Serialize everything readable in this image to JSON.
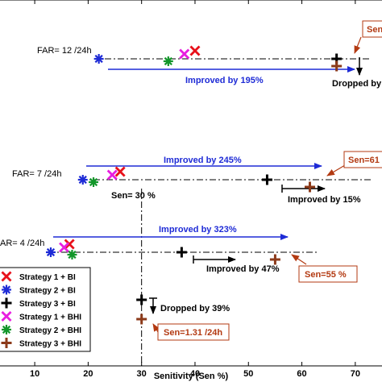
{
  "chart_data": {
    "type": "scatter",
    "title": "",
    "xlabel": "Senitivity (Sen %)",
    "ylabel": "",
    "xlim": [
      3.5,
      75
    ],
    "xticks": [
      10,
      20,
      30,
      40,
      50,
      60,
      70
    ],
    "grid": false,
    "legend_position": "bottom-left",
    "rows": [
      {
        "far_label": "FAR= 12 /24h",
        "points": {
          "strategy1_bi": 40.0,
          "strategy2_bi": 22.0,
          "strategy3_bi": 66.5,
          "strategy1_bhi": 38.0,
          "strategy2_bhi": 35.0,
          "strategy3_bhi": 66.5
        }
      },
      {
        "far_label": "FAR= 7 /24h",
        "points": {
          "strategy1_bi": 26.0,
          "strategy2_bi": 19.0,
          "strategy3_bi": 53.5,
          "strategy1_bhi": 24.5,
          "strategy2_bhi": 21.0,
          "strategy3_bhi": 61.5
        }
      },
      {
        "far_label": "AR= 4 /24h",
        "points": {
          "strategy1_bi": 16.5,
          "strategy2_bi": 13.0,
          "strategy3_bi": 37.5,
          "strategy1_bhi": 15.5,
          "strategy2_bhi": 17.0,
          "strategy3_bhi": 55.0
        }
      }
    ],
    "extra_points": [
      {
        "series": "strategy3_bi",
        "x": 30.0
      },
      {
        "series": "strategy3_bhi",
        "x": 30.0
      }
    ],
    "series": [
      {
        "key": "strategy1_bi",
        "name": "Strategy 1 + BI",
        "marker": "x",
        "color": "#e8101a"
      },
      {
        "key": "strategy2_bi",
        "name": "Strategy 2 + BI",
        "marker": "asterisk",
        "color": "#1e2bd6"
      },
      {
        "key": "strategy3_bi",
        "name": "Strategy 3 + BI",
        "marker": "plus",
        "color": "#000000"
      },
      {
        "key": "strategy1_bhi",
        "name": "Strategy 1 + BHI",
        "marker": "x",
        "color": "#e81ee0"
      },
      {
        "key": "strategy2_bhi",
        "name": "Strategy 2 + BHI",
        "marker": "asterisk",
        "color": "#12962a"
      },
      {
        "key": "strategy3_bhi",
        "name": "Strategy 3 + BHI",
        "marker": "plus",
        "color": "#8c3a1a"
      }
    ],
    "vline_x": 30,
    "annotations": {
      "row1_improved": "Improved by 195%",
      "row1_dropped": "Dropped by",
      "row1_sen": "Sen",
      "row2_improved_blue": "Improved by 245%",
      "row2_sen30": "Sen= 30 %",
      "row2_improved_black": "Improved by 15%",
      "row2_sen": "Sen=61",
      "row3_improved_blue": "Improved by 323%",
      "row3_improved_black": "Improved by 47%",
      "row3_sen": "Sen=55 %",
      "bottom_dropped": "Dropped by 39%",
      "bottom_sen": "Sen=1.31 /24h"
    },
    "colors": {
      "blue_arrow": "#1e2bd6",
      "brown_box": "#b33a12",
      "black": "#000000"
    }
  }
}
